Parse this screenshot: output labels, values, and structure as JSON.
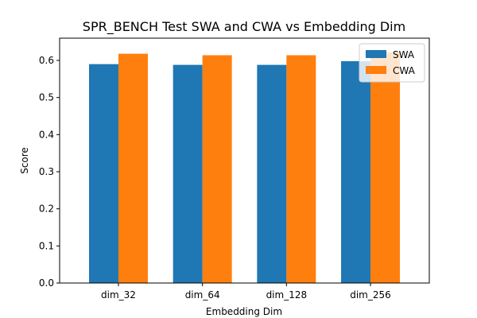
{
  "chart_data": {
    "type": "bar",
    "title": "SPR_BENCH Test SWA and CWA vs Embedding Dim",
    "xlabel": "Embedding Dim",
    "ylabel": "Score",
    "categories": [
      "dim_32",
      "dim_64",
      "dim_128",
      "dim_256"
    ],
    "series": [
      {
        "name": "SWA",
        "color": "#1f77b4",
        "values": [
          0.59,
          0.588,
          0.588,
          0.598
        ]
      },
      {
        "name": "CWA",
        "color": "#ff7f0e",
        "values": [
          0.618,
          0.614,
          0.614,
          0.622
        ]
      }
    ],
    "ylim": [
      0,
      0.66
    ],
    "yticks": [
      "0.0",
      "0.1",
      "0.2",
      "0.3",
      "0.4",
      "0.5",
      "0.6"
    ],
    "legend": "top-right",
    "grid": false
  }
}
